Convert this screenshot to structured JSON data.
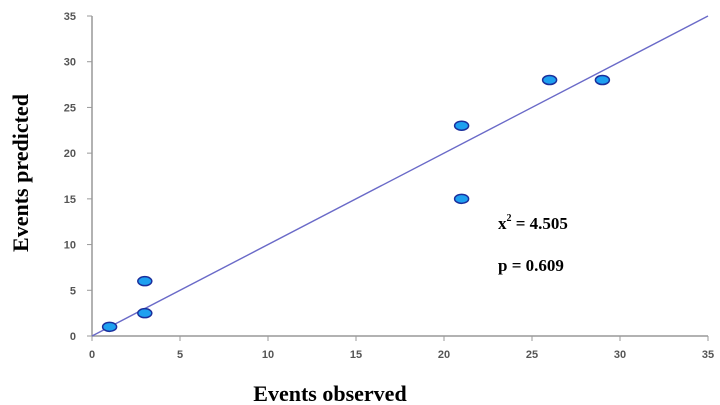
{
  "chart_data": {
    "type": "scatter",
    "xlabel": "Events observed",
    "ylabel": "Events predicted",
    "xlim": [
      0,
      35
    ],
    "ylim": [
      0,
      35
    ],
    "xticks": [
      0,
      5,
      10,
      15,
      20,
      25,
      30,
      35
    ],
    "yticks": [
      0,
      5,
      10,
      15,
      20,
      25,
      30,
      35
    ],
    "grid": false,
    "points": [
      {
        "x": 1,
        "y": 1
      },
      {
        "x": 3,
        "y": 2.5
      },
      {
        "x": 3,
        "y": 6
      },
      {
        "x": 21,
        "y": 15
      },
      {
        "x": 21,
        "y": 23
      },
      {
        "x": 26,
        "y": 28
      },
      {
        "x": 29,
        "y": 28
      }
    ],
    "reference_line": {
      "x": [
        0,
        35
      ],
      "y": [
        0,
        35
      ]
    },
    "annotations": {
      "chi_square_symbol": "x",
      "chi_square_sup": "2",
      "chi_square_value": " = 4.505",
      "p_value": "p = 0.609"
    },
    "colors": {
      "point_fill": "#1ea0f0",
      "point_stroke": "#1b2f9c",
      "line": "#6a6ac8",
      "axis": "#999999"
    }
  }
}
